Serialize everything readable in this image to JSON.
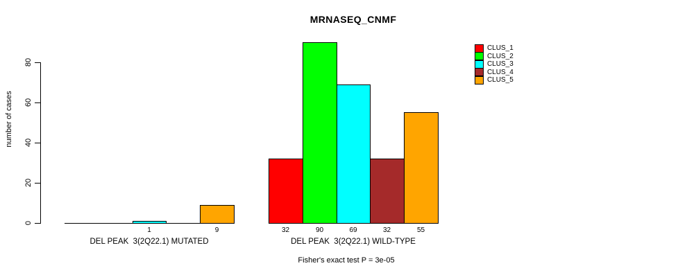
{
  "chart_data": {
    "type": "bar",
    "title": "MRNASEQ_CNMF",
    "ylabel": "number of cases",
    "ylim": [
      0,
      90
    ],
    "yticks": [
      0,
      20,
      40,
      60,
      80
    ],
    "grid": false,
    "legend_position": "top-right",
    "categories": [
      "DEL PEAK  3(2Q22.1) MUTATED",
      "DEL PEAK  3(2Q22.1) WILD-TYPE"
    ],
    "series": [
      {
        "name": "CLUS_1",
        "color": "#ff0000",
        "values": [
          0,
          32
        ]
      },
      {
        "name": "CLUS_2",
        "color": "#00ff00",
        "values": [
          0,
          90
        ]
      },
      {
        "name": "CLUS_3",
        "color": "#00ffff",
        "values": [
          1,
          69
        ]
      },
      {
        "name": "CLUS_4",
        "color": "#a52a2a",
        "values": [
          0,
          32
        ]
      },
      {
        "name": "CLUS_5",
        "color": "#ffa500",
        "values": [
          9,
          55
        ]
      }
    ],
    "value_labels": {
      "show": true,
      "hide_zero": true
    },
    "annotation": "Fisher's exact test P = 3e-05"
  }
}
